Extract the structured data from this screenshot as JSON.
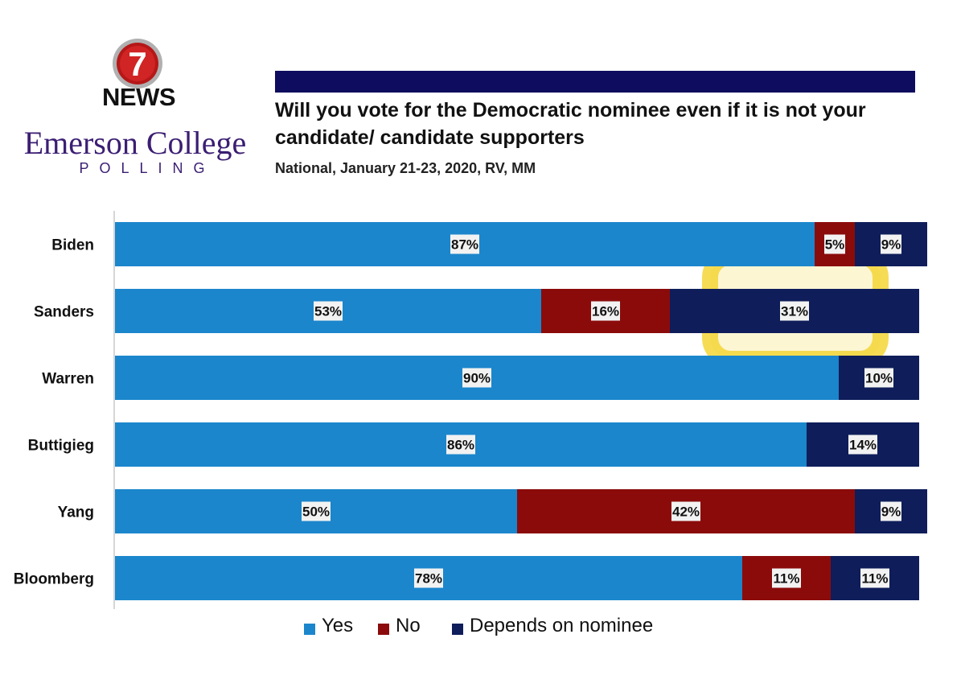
{
  "logo": {
    "seven": "7",
    "news": "NEWS",
    "org": "Emerson College",
    "unit": "POLLING"
  },
  "colors": {
    "yes": "#1b86cc",
    "no": "#8b0b0b",
    "depends": "#0f1d5a",
    "title_bar": "#0e0c5e",
    "highlight": "#f5d637"
  },
  "chart_data": {
    "type": "bar",
    "orientation": "horizontal",
    "stacked": true,
    "title": "Will you vote for the Democratic nominee even if it is not your candidate/ candidate supporters",
    "subtitle": "National, January 21-23, 2020, RV, MM",
    "categories": [
      "Biden",
      "Sanders",
      "Warren",
      "Buttigieg",
      "Yang",
      "Bloomberg"
    ],
    "series": [
      {
        "name": "Yes",
        "values": [
          87,
          53,
          90,
          86,
          50,
          78
        ]
      },
      {
        "name": "No",
        "values": [
          5,
          16,
          null,
          null,
          42,
          11
        ]
      },
      {
        "name": "Depends on nominee",
        "values": [
          9,
          31,
          10,
          14,
          9,
          11
        ]
      }
    ],
    "value_suffix": "%",
    "xlim": [
      0,
      101
    ],
    "legend_position": "bottom",
    "grid": false,
    "highlight": {
      "category": "Sanders",
      "series": "Depends on nominee"
    }
  }
}
